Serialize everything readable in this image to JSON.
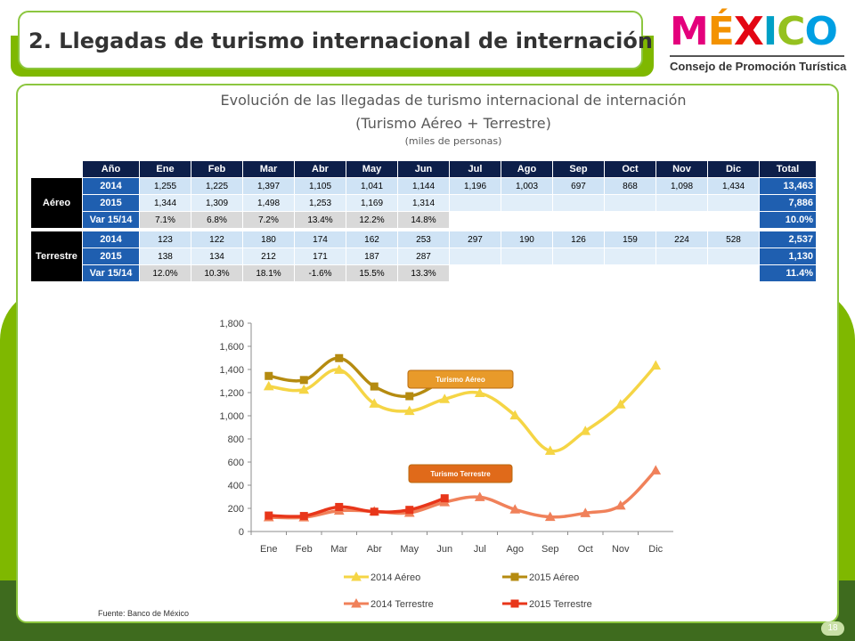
{
  "page_title": "2. Llegadas de turismo internacional de internación",
  "logo": {
    "word": "MÉXICO",
    "subtitle": "Consejo de Promoción Turística",
    "letter_colors": [
      "#e4007c",
      "#f39200",
      "#e30613",
      "#00a0c6",
      "#95c11f",
      "#009fe3"
    ]
  },
  "chart_heading": {
    "line1": "Evolución de las llegadas de turismo internacional de internación",
    "line2": "(Turismo Aéreo + Terrestre)",
    "unit": "(miles de personas)"
  },
  "table": {
    "header": [
      "Año",
      "Ene",
      "Feb",
      "Mar",
      "Abr",
      "May",
      "Jun",
      "Jul",
      "Ago",
      "Sep",
      "Oct",
      "Nov",
      "Dic",
      "Total"
    ],
    "groups": [
      {
        "name": "Aéreo",
        "rows": [
          {
            "label": "2014",
            "kind": "y14",
            "values": [
              "1,255",
              "1,225",
              "1,397",
              "1,105",
              "1,041",
              "1,144",
              "1,196",
              "1,003",
              "697",
              "868",
              "1,098",
              "1,434"
            ],
            "total": "13,463"
          },
          {
            "label": "2015",
            "kind": "y15",
            "values": [
              "1,344",
              "1,309",
              "1,498",
              "1,253",
              "1,169",
              "1,314",
              "",
              "",
              "",
              "",
              "",
              ""
            ],
            "total": "7,886"
          },
          {
            "label": "Var 15/14",
            "kind": "var",
            "values": [
              "7.1%",
              "6.8%",
              "7.2%",
              "13.4%",
              "12.2%",
              "14.8%",
              "",
              "",
              "",
              "",
              "",
              ""
            ],
            "total": "10.0%"
          }
        ]
      },
      {
        "name": "Terrestre",
        "rows": [
          {
            "label": "2014",
            "kind": "y14",
            "values": [
              "123",
              "122",
              "180",
              "174",
              "162",
              "253",
              "297",
              "190",
              "126",
              "159",
              "224",
              "528"
            ],
            "total": "2,537"
          },
          {
            "label": "2015",
            "kind": "y15",
            "values": [
              "138",
              "134",
              "212",
              "171",
              "187",
              "287",
              "",
              "",
              "",
              "",
              "",
              ""
            ],
            "total": "1,130"
          },
          {
            "label": "Var 15/14",
            "kind": "var",
            "values": [
              "12.0%",
              "10.3%",
              "18.1%",
              "-1.6%",
              "15.5%",
              "13.3%",
              "",
              "",
              "",
              "",
              "",
              ""
            ],
            "total": "11.4%"
          }
        ]
      }
    ]
  },
  "chart_data": {
    "type": "line",
    "categories": [
      "Ene",
      "Feb",
      "Mar",
      "Abr",
      "May",
      "Jun",
      "Jul",
      "Ago",
      "Sep",
      "Oct",
      "Nov",
      "Dic"
    ],
    "ylim": [
      0,
      1800
    ],
    "yticks": [
      "0",
      "200",
      "400",
      "600",
      "800",
      "1,000",
      "1,200",
      "1,400",
      "1,600",
      "1,800"
    ],
    "ytick_values": [
      0,
      200,
      400,
      600,
      800,
      1000,
      1200,
      1400,
      1600,
      1800
    ],
    "grid": false,
    "legend_position": "bottom",
    "series": [
      {
        "name": "2014 Aéreo",
        "color": "#f5d545",
        "marker": "triangle",
        "values": [
          1255,
          1225,
          1397,
          1105,
          1041,
          1144,
          1196,
          1003,
          697,
          868,
          1098,
          1434
        ]
      },
      {
        "name": "2015 Aéreo",
        "color": "#b58b10",
        "marker": "square",
        "values": [
          1344,
          1309,
          1498,
          1253,
          1169,
          1314,
          null,
          null,
          null,
          null,
          null,
          null
        ]
      },
      {
        "name": "2014 Terrestre",
        "color": "#f0815a",
        "marker": "triangle",
        "values": [
          123,
          122,
          180,
          174,
          162,
          253,
          297,
          190,
          126,
          159,
          224,
          528
        ]
      },
      {
        "name": "2015 Terrestre",
        "color": "#e8361a",
        "marker": "square",
        "values": [
          138,
          134,
          212,
          171,
          187,
          287,
          null,
          null,
          null,
          null,
          null,
          null
        ]
      }
    ],
    "annotations": [
      {
        "text": "Turismo Aéreo",
        "color": "#e89a2a"
      },
      {
        "text": "Turismo Terrestre",
        "color": "#e06a1a"
      }
    ]
  },
  "source": "Fuente: Banco de México",
  "page_number": "18"
}
